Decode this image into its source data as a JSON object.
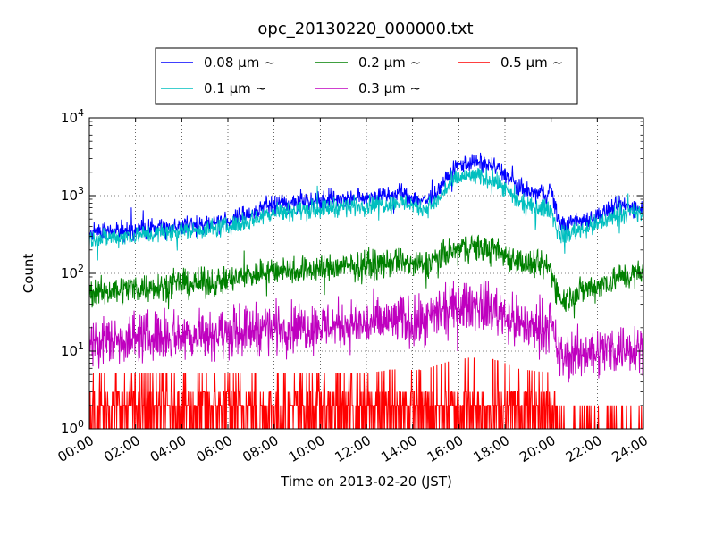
{
  "chart_data": {
    "type": "line",
    "title": "opc_20130220_000000.txt",
    "xlabel": "Time on 2013-02-20 (JST)",
    "ylabel": "Count",
    "y_scale": "log",
    "ylim": [
      1,
      10000
    ],
    "xlim": [
      "00:00",
      "24:00"
    ],
    "x_tick_labels": [
      "00:00",
      "02:00",
      "04:00",
      "06:00",
      "08:00",
      "10:00",
      "12:00",
      "14:00",
      "16:00",
      "18:00",
      "20:00",
      "22:00",
      "24:00"
    ],
    "y_tick_labels": [
      {
        "base": "10",
        "exp": "0"
      },
      {
        "base": "10",
        "exp": "1"
      },
      {
        "base": "10",
        "exp": "2"
      },
      {
        "base": "10",
        "exp": "3"
      },
      {
        "base": "10",
        "exp": "4"
      }
    ],
    "grid": true,
    "legend_position": "top-center",
    "x_hours": [
      0,
      1,
      2,
      3,
      4,
      5,
      6,
      6.5,
      7,
      7.5,
      8,
      9,
      10,
      11,
      12,
      13,
      13.5,
      14,
      14.5,
      15,
      15.5,
      16,
      16.5,
      17,
      17.5,
      18,
      18.5,
      19,
      19.5,
      19.8,
      20,
      20.3,
      20.6,
      21,
      22,
      23,
      24
    ],
    "series": [
      {
        "name": "0.08 μm ~",
        "color": "#0000ff",
        "values": [
          330,
          340,
          360,
          380,
          400,
          430,
          470,
          520,
          600,
          700,
          780,
          830,
          880,
          920,
          950,
          1000,
          1050,
          950,
          850,
          1000,
          1700,
          2500,
          2700,
          2600,
          2400,
          1900,
          1300,
          1100,
          1050,
          1050,
          1200,
          500,
          400,
          450,
          550,
          750,
          700
        ]
      },
      {
        "name": "0.1 μm ~",
        "color": "#00bfbf",
        "values": [
          280,
          290,
          310,
          330,
          350,
          370,
          400,
          440,
          480,
          560,
          620,
          650,
          680,
          720,
          760,
          790,
          820,
          760,
          680,
          800,
          1300,
          1700,
          1800,
          1700,
          1600,
          1200,
          850,
          720,
          690,
          690,
          650,
          330,
          300,
          350,
          420,
          600,
          580
        ]
      },
      {
        "name": "0.2 μm ~",
        "color": "#008000",
        "values": [
          55,
          60,
          65,
          70,
          72,
          75,
          80,
          88,
          95,
          105,
          110,
          110,
          115,
          120,
          125,
          135,
          145,
          130,
          125,
          155,
          175,
          200,
          220,
          210,
          195,
          175,
          150,
          130,
          125,
          125,
          110,
          55,
          45,
          55,
          70,
          90,
          100
        ]
      },
      {
        "name": "0.3 μm ~",
        "color": "#bf00bf",
        "values": [
          13,
          14,
          15,
          16,
          16,
          17,
          17,
          18,
          19,
          20,
          20,
          20,
          21,
          22,
          22,
          24,
          26,
          23,
          22,
          28,
          32,
          37,
          40,
          38,
          35,
          30,
          22,
          20,
          20,
          22,
          20,
          9,
          8,
          9,
          10,
          11,
          12
        ]
      },
      {
        "name": "0.5 μm ~",
        "color": "#ff0000",
        "values": [
          2,
          2,
          2,
          2,
          2,
          2,
          2,
          2,
          2,
          2,
          2,
          2,
          2,
          2,
          2,
          2.2,
          2.3,
          2.2,
          2.2,
          2.5,
          2.8,
          3,
          3.2,
          3.1,
          3,
          2.7,
          2.3,
          2.2,
          2.1,
          2.1,
          2,
          1.2,
          1.1,
          1.1,
          1.1,
          1.1,
          1.1
        ]
      }
    ]
  }
}
